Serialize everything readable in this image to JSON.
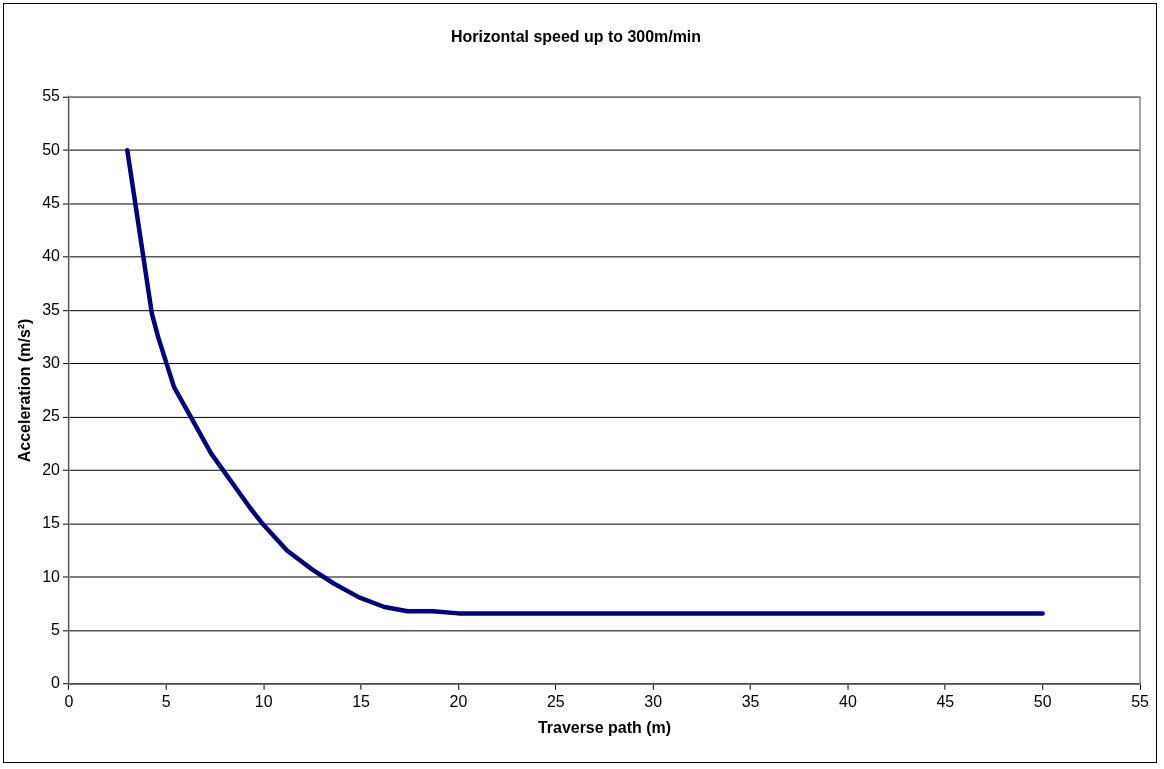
{
  "chart_data": {
    "type": "line",
    "title": "Horizontal speed up to 300m/min",
    "xlabel": "Traverse path (m)",
    "ylabel": "Acceleration (m/s²)",
    "x": [
      3,
      4.26,
      4.6,
      5.4,
      6.2,
      7.3,
      9.3,
      9.9,
      11.2,
      12.5,
      13.6,
      14.9,
      16.2,
      17.4,
      18.7,
      20,
      25,
      30,
      35,
      40,
      45,
      50
    ],
    "series": [
      {
        "color": "#000080",
        "values": [
          50,
          34.7,
          32.4,
          27.8,
          25.2,
          21.6,
          16.5,
          15.1,
          12.5,
          10.7,
          9.4,
          8.1,
          7.2,
          6.8,
          6.8,
          6.6,
          6.6,
          6.6,
          6.6,
          6.6,
          6.6,
          6.6
        ]
      }
    ],
    "xlim": [
      0,
      55
    ],
    "xticks": [
      0,
      5,
      10,
      15,
      20,
      25,
      30,
      35,
      40,
      45,
      50,
      55
    ],
    "ylim": [
      0,
      55
    ],
    "yticks": [
      0,
      5,
      10,
      15,
      20,
      25,
      30,
      35,
      40,
      45,
      50,
      55
    ],
    "grid": "y",
    "legend": false,
    "marker": "none",
    "line_style": "solid"
  }
}
